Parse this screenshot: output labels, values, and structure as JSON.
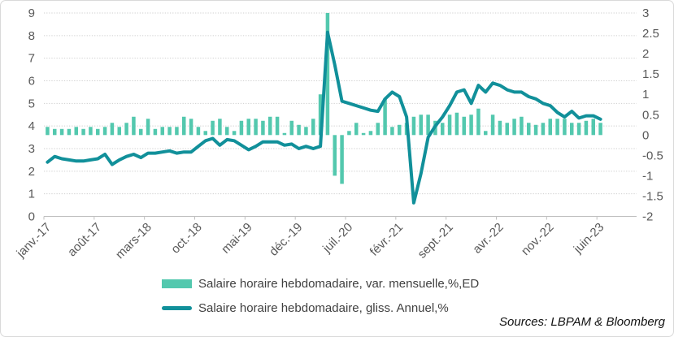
{
  "figure": {
    "source_note": "Sources: LBPAM & Bloomberg"
  },
  "colors": {
    "bars": "#53c8ae",
    "line": "#11909a",
    "gridline": "#cfcfcf",
    "axis_line": "#bfbfbf",
    "axis_text": "#595959",
    "legend_text": "#404040"
  },
  "chart_data": {
    "type": "combo-bar-line",
    "grid": "horizontal-dotted",
    "legend_position": "bottom",
    "x_tick_labels": [
      "janv.-17",
      "août-17",
      "mars-18",
      "oct.-18",
      "mai-19",
      "déc.-19",
      "juil.-20",
      "févr.-21",
      "sept.-21",
      "avr.-22",
      "nov.-22",
      "juin-23"
    ],
    "categories": [
      "janv.-17",
      "févr.-17",
      "mars-17",
      "avr.-17",
      "mai-17",
      "juin-17",
      "juil.-17",
      "août-17",
      "sept.-17",
      "oct.-17",
      "nov.-17",
      "déc.-17",
      "janv.-18",
      "févr.-18",
      "mars-18",
      "avr.-18",
      "mai-18",
      "juin-18",
      "juil.-18",
      "août-18",
      "sept.-18",
      "oct.-18",
      "nov.-18",
      "déc.-18",
      "janv.-19",
      "févr.-19",
      "mars-19",
      "avr.-19",
      "mai-19",
      "juin-19",
      "juil.-19",
      "août-19",
      "sept.-19",
      "oct.-19",
      "nov.-19",
      "déc.-19",
      "janv.-20",
      "févr.-20",
      "mars-20",
      "avr.-20",
      "mai-20",
      "juin-20",
      "juil.-20",
      "août-20",
      "sept.-20",
      "oct.-20",
      "nov.-20",
      "déc.-20",
      "janv.-21",
      "févr.-21",
      "mars-21",
      "avr.-21",
      "mai-21",
      "juin-21",
      "juil.-21",
      "août-21",
      "sept.-21",
      "oct.-21",
      "nov.-21",
      "déc.-21",
      "janv.-22",
      "févr.-22",
      "mars-22",
      "avr.-22",
      "mai-22",
      "juin-22",
      "juil.-22",
      "août-22",
      "sept.-22",
      "oct.-22",
      "nov.-22",
      "déc.-22",
      "janv.-23",
      "févr.-23",
      "mars-23",
      "avr.-23",
      "mai-23",
      "juin-23"
    ],
    "series": [
      {
        "name": "Salaire horaire hebdomadaire, var. mensuelle,%,ED",
        "type": "bar",
        "axis": "right",
        "values": [
          0.2,
          0.15,
          0.15,
          0.15,
          0.2,
          0.15,
          0.2,
          0.15,
          0.2,
          0.3,
          0.2,
          0.3,
          0.45,
          0.15,
          0.4,
          0.15,
          0.2,
          0.2,
          0.2,
          0.45,
          0.4,
          0.2,
          0.1,
          0.35,
          0.4,
          0.2,
          0.1,
          0.35,
          0.4,
          0.4,
          0.35,
          0.45,
          0.45,
          0.05,
          0.35,
          0.25,
          0.2,
          0.4,
          1.0,
          3.0,
          -1.0,
          -1.2,
          0.1,
          0.3,
          0.05,
          0.1,
          0.3,
          0.9,
          0.2,
          0.25,
          0.3,
          0.45,
          0.5,
          0.5,
          0.35,
          0.3,
          0.5,
          0.55,
          0.45,
          0.5,
          0.65,
          0.1,
          0.5,
          0.35,
          0.3,
          0.4,
          0.45,
          0.3,
          0.25,
          0.3,
          0.4,
          0.4,
          0.4,
          0.3,
          0.3,
          0.35,
          0.4,
          0.3
        ]
      },
      {
        "name": "Salaire horaire hebdomadaire, gliss. Annuel,%",
        "type": "line",
        "axis": "left",
        "values": [
          2.4,
          2.65,
          2.55,
          2.5,
          2.45,
          2.45,
          2.5,
          2.55,
          2.75,
          2.3,
          2.5,
          2.65,
          2.75,
          2.6,
          2.8,
          2.8,
          2.85,
          2.9,
          2.8,
          2.85,
          2.85,
          3.1,
          3.35,
          3.45,
          3.15,
          3.4,
          3.35,
          3.15,
          2.95,
          3.1,
          3.3,
          3.3,
          3.3,
          3.15,
          3.2,
          3.0,
          3.1,
          3.0,
          3.1,
          8.15,
          6.7,
          5.1,
          5.0,
          4.9,
          4.8,
          4.7,
          4.65,
          5.2,
          5.5,
          5.3,
          4.4,
          0.6,
          1.9,
          3.5,
          4.0,
          4.4,
          4.9,
          5.5,
          5.6,
          5.0,
          5.8,
          5.5,
          5.9,
          5.8,
          5.6,
          5.5,
          5.5,
          5.3,
          5.2,
          5.0,
          4.9,
          4.6,
          4.4,
          4.65,
          4.35,
          4.45,
          4.45,
          4.3
        ]
      }
    ],
    "left_axis": {
      "min": 0,
      "max": 9,
      "step": 1,
      "tick_labels": [
        "0",
        "1",
        "2",
        "3",
        "4",
        "5",
        "6",
        "7",
        "8",
        "9"
      ]
    },
    "right_axis": {
      "min": -2,
      "max": 3,
      "step": 0.5,
      "tick_labels": [
        "3",
        "2.5",
        "2",
        "1.5",
        "1",
        "0.5",
        "0",
        "-0.5",
        "-1",
        "-1.5",
        "-2"
      ]
    }
  },
  "legend": {
    "items": [
      {
        "label": "Salaire horaire hebdomadaire, var. mensuelle,%,ED"
      },
      {
        "label": "Salaire horaire hebdomadaire, gliss. Annuel,%"
      }
    ]
  }
}
